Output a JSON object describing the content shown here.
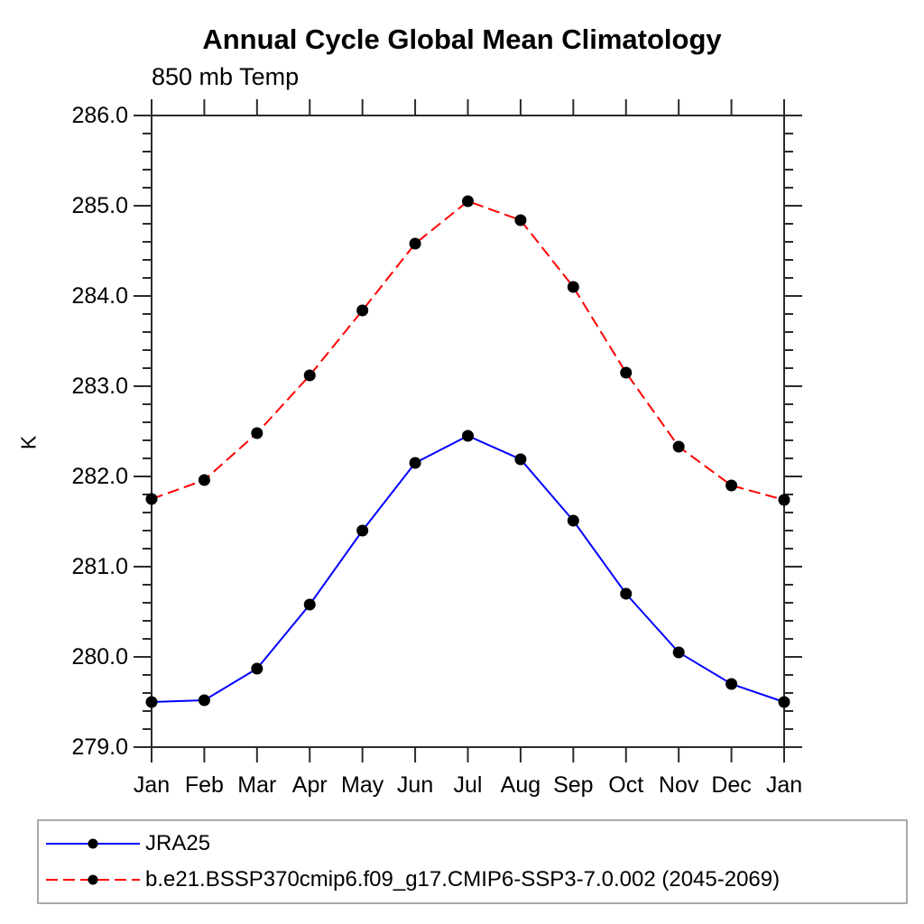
{
  "figure": {
    "title": "Annual Cycle Global Mean Climatology",
    "subtitle": "850 mb Temp",
    "ylabel": "K"
  },
  "chart_data": {
    "type": "line",
    "title": "Annual Cycle Global Mean Climatology",
    "subtitle": "850 mb Temp",
    "xlabel": "",
    "ylabel": "K",
    "categories": [
      "Jan",
      "Feb",
      "Mar",
      "Apr",
      "May",
      "Jun",
      "Jul",
      "Aug",
      "Sep",
      "Oct",
      "Nov",
      "Dec",
      "Jan"
    ],
    "ylim": [
      279.0,
      286.0
    ],
    "ytick_major_step": 1.0,
    "ytick_minor_step": 0.2,
    "ytick_labels": [
      "279.0",
      "280.0",
      "281.0",
      "282.0",
      "283.0",
      "284.0",
      "285.0",
      "286.0"
    ],
    "grid": false,
    "legend_position": "bottom",
    "frame_color": "#2b2b2b",
    "marker_radius": 6.5,
    "series": [
      {
        "name": "JRA25",
        "color": "#0000ff",
        "line_style": "solid",
        "marker": "circle",
        "marker_color": "#000000",
        "values": [
          279.5,
          279.52,
          279.87,
          280.58,
          281.4,
          282.15,
          282.45,
          282.19,
          281.51,
          280.7,
          280.05,
          279.7,
          279.5
        ]
      },
      {
        "name": "b.e21.BSSP370cmip6.f09_g17.CMIP6-SSP3-7.0.002 (2045-2069)",
        "color": "#ff0000",
        "line_style": "dashed",
        "marker": "circle",
        "marker_color": "#000000",
        "values": [
          281.75,
          281.96,
          282.48,
          283.12,
          283.84,
          284.58,
          285.05,
          284.84,
          284.1,
          283.15,
          282.33,
          281.9,
          281.74
        ]
      }
    ]
  }
}
